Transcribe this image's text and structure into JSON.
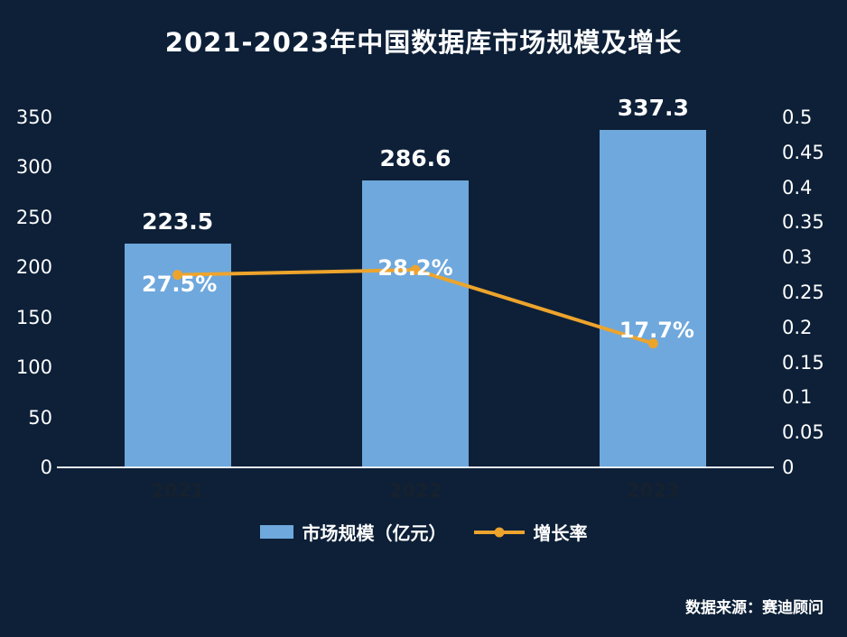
{
  "title": "2021-2023年中国数据库市场规模及增长",
  "chart_data": {
    "type": "bar",
    "subtype": "combo-bar-line-dual-axis",
    "categories": [
      "2021",
      "2022",
      "2023"
    ],
    "series": [
      {
        "name": "市场规模（亿元）",
        "type": "bar",
        "axis": "left",
        "values": [
          223.5,
          286.6,
          337.3
        ],
        "value_labels": [
          "223.5",
          "286.6",
          "337.3"
        ],
        "color": "#6fa8dc"
      },
      {
        "name": "增长率",
        "type": "line",
        "axis": "right",
        "values": [
          0.275,
          0.282,
          0.177
        ],
        "value_labels": [
          "27.5%",
          "28.2%",
          "17.7%"
        ],
        "color": "#eda42c"
      }
    ],
    "left_axis": {
      "min": 0,
      "max": 350,
      "step": 50,
      "tick_labels": [
        "350",
        "300",
        "250",
        "200",
        "150",
        "100",
        "50",
        "0"
      ]
    },
    "right_axis": {
      "min": 0,
      "max": 0.5,
      "step": 0.05,
      "tick_labels": [
        "0.5",
        "0.45",
        "0.4",
        "0.35",
        "0.3",
        "0.25",
        "0.2",
        "0.15",
        "0.1",
        "0.05",
        "0"
      ]
    },
    "grid": false,
    "legend_position": "bottom"
  },
  "legend": {
    "items": [
      {
        "label": "市场规模（亿元）",
        "swatch": "bar"
      },
      {
        "label": "增长率",
        "swatch": "line"
      }
    ]
  },
  "source_note": "数据来源：赛迪顾问",
  "colors": {
    "background": "#0d2038",
    "bar": "#6fa8dc",
    "line": "#eda42c",
    "text": "#ffffff",
    "x_label": "#17212e",
    "axis_line": "#e9eff6"
  }
}
